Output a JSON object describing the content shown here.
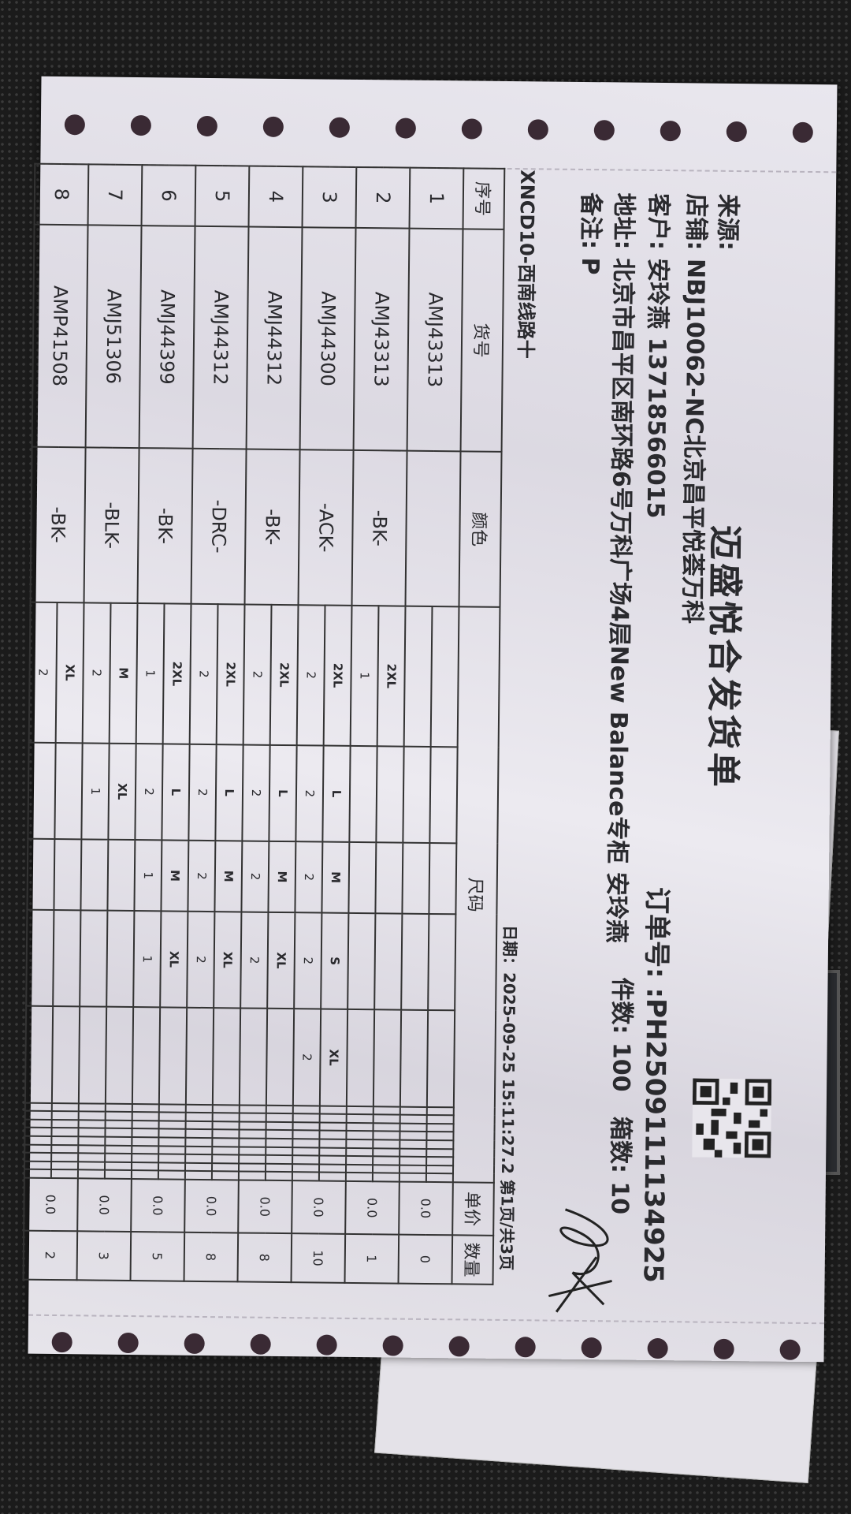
{
  "document": {
    "title": "迈盛悦合发货单",
    "source_label": "来源:",
    "store_label": "店铺:",
    "store_value": "NBJ10062-NC北京昌平悦荟万科",
    "customer_label": "客户:",
    "customer_value": "安玲燕 13718566015",
    "address_label": "地址:",
    "address_value": "北京市昌平区南环路6号万科广场4层New Balance专柜 安玲燕",
    "remark_label": "备注:",
    "remark_value": "P",
    "order_label": "订单号:",
    "order_value": ":PH2509111134925",
    "pieces_label": "件数:",
    "pieces_value": "100",
    "boxes_label": "箱数:",
    "boxes_value": "10",
    "route": "XNCD10-西南线路十",
    "date": "日期：2025-09-25 15:11:27.2 第1页/共3页"
  },
  "table": {
    "headers": {
      "no": "序号",
      "sku": "货号",
      "color": "颜色",
      "size": "尺码",
      "price": "单价",
      "qty": "数量"
    },
    "rows": [
      {
        "no": "1",
        "sku": "AMJ43313",
        "color": "",
        "sizes": [],
        "price": "0.0",
        "qty": "0"
      },
      {
        "no": "2",
        "sku": "AMJ43313",
        "color": "-BK-",
        "sizes": [
          {
            "s": "2XL",
            "q": "1"
          }
        ],
        "price": "0.0",
        "qty": "1"
      },
      {
        "no": "3",
        "sku": "AMJ44300",
        "color": "-ACK-",
        "sizes": [
          {
            "s": "2XL",
            "q": "2"
          },
          {
            "s": "L",
            "q": "2"
          },
          {
            "s": "M",
            "q": "2"
          },
          {
            "s": "S",
            "q": "2"
          },
          {
            "s": "XL",
            "q": "2"
          }
        ],
        "price": "0.0",
        "qty": "10"
      },
      {
        "no": "4",
        "sku": "AMJ44312",
        "color": "-BK-",
        "sizes": [
          {
            "s": "2XL",
            "q": "2"
          },
          {
            "s": "L",
            "q": "2"
          },
          {
            "s": "M",
            "q": "2"
          },
          {
            "s": "XL",
            "q": "2"
          }
        ],
        "price": "0.0",
        "qty": "8"
      },
      {
        "no": "5",
        "sku": "AMJ44312",
        "color": "-DRC-",
        "sizes": [
          {
            "s": "2XL",
            "q": "2"
          },
          {
            "s": "L",
            "q": "2"
          },
          {
            "s": "M",
            "q": "2"
          },
          {
            "s": "XL",
            "q": "2"
          }
        ],
        "price": "0.0",
        "qty": "8"
      },
      {
        "no": "6",
        "sku": "AMJ44399",
        "color": "-BK-",
        "sizes": [
          {
            "s": "2XL",
            "q": "1"
          },
          {
            "s": "L",
            "q": "2"
          },
          {
            "s": "M",
            "q": "1"
          },
          {
            "s": "XL",
            "q": "1"
          }
        ],
        "price": "0.0",
        "qty": "5"
      },
      {
        "no": "7",
        "sku": "AMJ51306",
        "color": "-BLK-",
        "sizes": [
          {
            "s": "M",
            "q": "2"
          },
          {
            "s": "XL",
            "q": "1"
          }
        ],
        "price": "0.0",
        "qty": "3"
      },
      {
        "no": "8",
        "sku": "AMP41508",
        "color": "-BK-",
        "sizes": [
          {
            "s": "XL",
            "q": "2"
          }
        ],
        "price": "0.0",
        "qty": "2"
      }
    ]
  },
  "icons": {
    "qr": "qr-code",
    "signature": "handwritten-signature"
  }
}
